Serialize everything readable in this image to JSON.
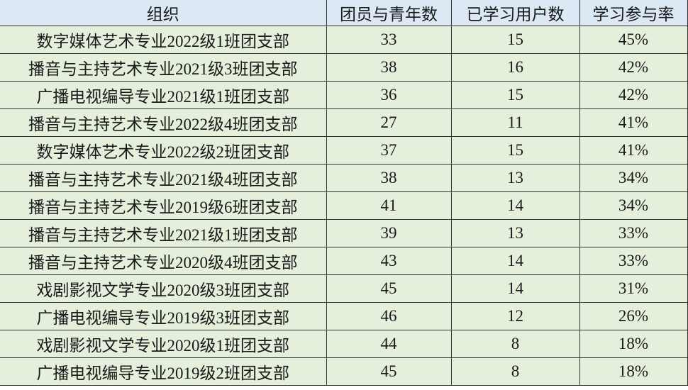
{
  "table": {
    "headers": [
      "组织",
      "团员与青年数",
      "已学习用户数",
      "学习参与率"
    ],
    "rows": [
      [
        "数字媒体艺术专业2022级1班团支部",
        "33",
        "15",
        "45%"
      ],
      [
        "播音与主持艺术专业2021级3班团支部",
        "38",
        "16",
        "42%"
      ],
      [
        "广播电视编导专业2021级1班团支部",
        "36",
        "15",
        "42%"
      ],
      [
        "播音与主持艺术专业2022级4班团支部",
        "27",
        "11",
        "41%"
      ],
      [
        "数字媒体艺术专业2022级2班团支部",
        "37",
        "15",
        "41%"
      ],
      [
        "播音与主持艺术专业2021级4班团支部",
        "38",
        "13",
        "34%"
      ],
      [
        "播音与主持艺术专业2019级6班团支部",
        "41",
        "14",
        "34%"
      ],
      [
        "播音与主持艺术专业2021级1班团支部",
        "39",
        "13",
        "33%"
      ],
      [
        "播音与主持艺术专业2020级4班团支部",
        "43",
        "14",
        "33%"
      ],
      [
        "戏剧影视文学专业2020级3班团支部",
        "45",
        "14",
        "31%"
      ],
      [
        "广播电视编导专业2019级3班团支部",
        "46",
        "12",
        "26%"
      ],
      [
        "戏剧影视文学专业2020级1班团支部",
        "44",
        "8",
        "18%"
      ],
      [
        "广播电视编导专业2019级2班团支部",
        "45",
        "8",
        "18%"
      ]
    ]
  },
  "colors": {
    "header_bg": "#dce9f5",
    "row_bg": "#e4efdc",
    "border": "#333333"
  }
}
